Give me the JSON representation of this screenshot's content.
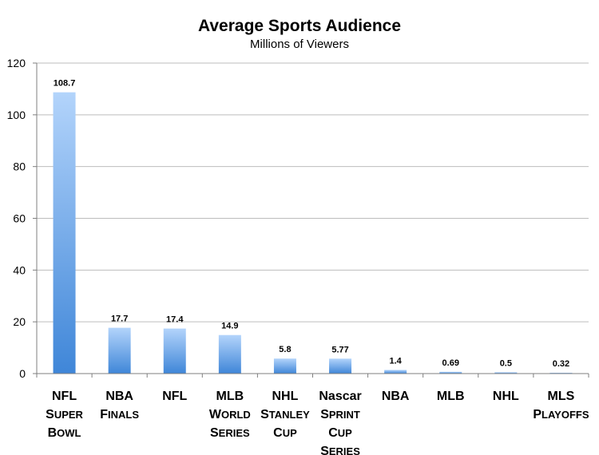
{
  "chart_data": {
    "type": "bar",
    "title": "Average Sports Audience",
    "subtitle": "Millions of Viewers",
    "xlabel": "",
    "ylabel": "",
    "ylim": [
      0,
      120
    ],
    "yticks": [
      "0",
      "20",
      "40",
      "60",
      "80",
      "100",
      "120"
    ],
    "grid": true,
    "legend": "none",
    "categories": [
      [
        "NFL",
        "Super",
        "Bowl"
      ],
      [
        "NBA",
        "Finals"
      ],
      [
        "NFL"
      ],
      [
        "MLB",
        "World",
        "Series"
      ],
      [
        "NHL",
        "Stanley",
        "Cup"
      ],
      [
        "Nascar",
        "Sprint",
        "Cup",
        "Series"
      ],
      [
        "NBA"
      ],
      [
        "MLB"
      ],
      [
        "NHL"
      ],
      [
        "MLS",
        "Playoffs"
      ]
    ],
    "values": [
      108.7,
      17.7,
      17.4,
      14.9,
      5.8,
      5.77,
      1.4,
      0.69,
      0.5,
      0.32
    ],
    "value_labels": [
      "108.7",
      "17.7",
      "17.4",
      "14.9",
      "5.8",
      "5.77",
      "1.4",
      "0.69",
      "0.5",
      "0.32"
    ],
    "colors": {
      "bar_top": "#b3d4fb",
      "bar_bottom": "#3f86d8",
      "grid": "#bdbdbd",
      "axis": "#7f7f7f"
    }
  }
}
